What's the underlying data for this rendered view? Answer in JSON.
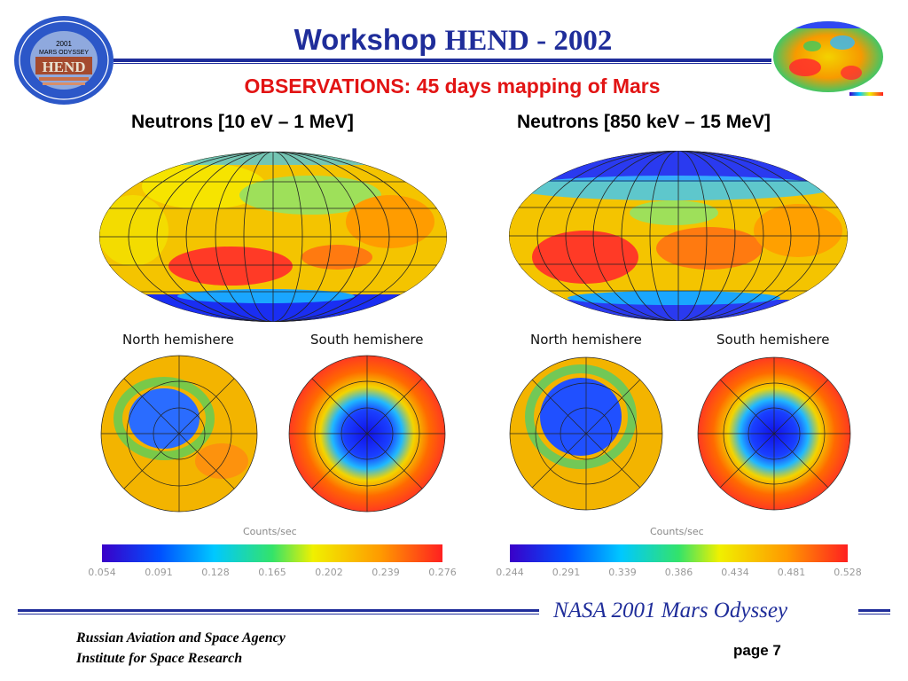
{
  "header": {
    "title_brand": "Workshop",
    "title_rest": "HEND - 2002",
    "subtitle": "OBSERVATIONS: 45 days mapping of Mars",
    "logo_text": {
      "year": "2001",
      "mission": "MARS ODYSSEY",
      "acronym": "HEND"
    }
  },
  "panels": [
    {
      "heading": "Neutrons [10 eV – 1 MeV]",
      "north_label": "North hemishere",
      "south_label": "South hemishere",
      "colorbar_title": "Counts/sec",
      "ticks": [
        "0.054",
        "0.091",
        "0.128",
        "0.165",
        "0.202",
        "0.239",
        "0.276"
      ]
    },
    {
      "heading": "Neutrons [850 keV – 15 MeV]",
      "north_label": "North hemishere",
      "south_label": "South hemishere",
      "colorbar_title": "Counts/sec",
      "ticks": [
        "0.244",
        "0.291",
        "0.339",
        "0.386",
        "0.434",
        "0.481",
        "0.528"
      ]
    }
  ],
  "footer": {
    "mission": "NASA 2001 Mars Odyssey",
    "agency_line1": "Russian Aviation and Space Agency",
    "agency_line2": "Institute for Space Research",
    "page": "page 7"
  },
  "colors": {
    "brand_blue": "#1f2d9a",
    "accent_red": "#e21414",
    "map_scale": [
      "#3a00c8",
      "#0050ff",
      "#00c8ff",
      "#33e36a",
      "#f0f000",
      "#ff9900",
      "#ff2020"
    ]
  }
}
